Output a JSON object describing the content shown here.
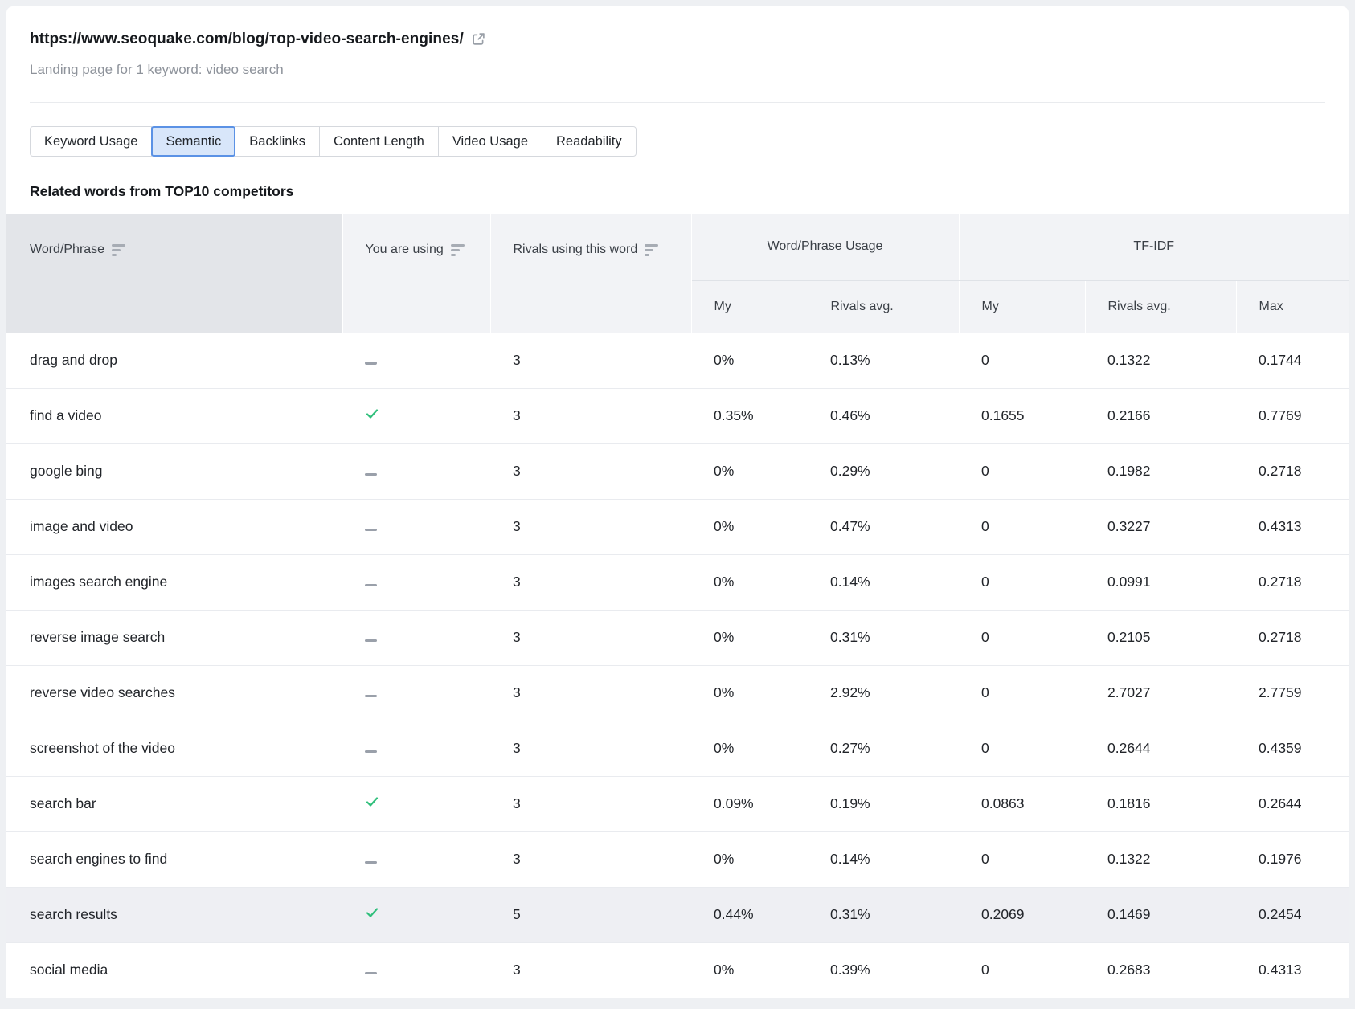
{
  "page": {
    "url": "https://www.seoquake.com/blog/тop-video-search-engines/",
    "subtitle": "Landing page for 1 keyword: video search"
  },
  "tabs": [
    {
      "label": "Keyword Usage",
      "selected": false
    },
    {
      "label": "Semantic",
      "selected": true
    },
    {
      "label": "Backlinks",
      "selected": false
    },
    {
      "label": "Content Length",
      "selected": false
    },
    {
      "label": "Video Usage",
      "selected": false
    },
    {
      "label": "Readability",
      "selected": false
    }
  ],
  "section_title": "Related words from TOP10 competitors",
  "table": {
    "headers": {
      "word_phrase": "Word/Phrase",
      "you_are_using": "You are using",
      "rivals_using": "Rivals using this word",
      "usage_group": "Word/Phrase Usage",
      "tfidf_group": "TF-IDF",
      "usage_my": "My",
      "usage_rivals_avg": "Rivals avg.",
      "tfidf_my": "My",
      "tfidf_rivals_avg": "Rivals avg.",
      "tfidf_max": "Max"
    },
    "rows": [
      {
        "word": "drag and drop",
        "using": false,
        "rivals": "3",
        "usage_my": "0%",
        "usage_rivals": "0.13%",
        "tfidf_my": "0",
        "tfidf_rivals": "0.1322",
        "tfidf_max": "0.1744",
        "highlight": false
      },
      {
        "word": "find a video",
        "using": true,
        "rivals": "3",
        "usage_my": "0.35%",
        "usage_rivals": "0.46%",
        "tfidf_my": "0.1655",
        "tfidf_rivals": "0.2166",
        "tfidf_max": "0.7769",
        "highlight": false
      },
      {
        "word": "google bing",
        "using": false,
        "rivals": "3",
        "usage_my": "0%",
        "usage_rivals": "0.29%",
        "tfidf_my": "0",
        "tfidf_rivals": "0.1982",
        "tfidf_max": "0.2718",
        "highlight": false
      },
      {
        "word": "image and video",
        "using": false,
        "rivals": "3",
        "usage_my": "0%",
        "usage_rivals": "0.47%",
        "tfidf_my": "0",
        "tfidf_rivals": "0.3227",
        "tfidf_max": "0.4313",
        "highlight": false
      },
      {
        "word": "images search engine",
        "using": false,
        "rivals": "3",
        "usage_my": "0%",
        "usage_rivals": "0.14%",
        "tfidf_my": "0",
        "tfidf_rivals": "0.0991",
        "tfidf_max": "0.2718",
        "highlight": false
      },
      {
        "word": "reverse image search",
        "using": false,
        "rivals": "3",
        "usage_my": "0%",
        "usage_rivals": "0.31%",
        "tfidf_my": "0",
        "tfidf_rivals": "0.2105",
        "tfidf_max": "0.2718",
        "highlight": false
      },
      {
        "word": "reverse video searches",
        "using": false,
        "rivals": "3",
        "usage_my": "0%",
        "usage_rivals": "2.92%",
        "tfidf_my": "0",
        "tfidf_rivals": "2.7027",
        "tfidf_max": "2.7759",
        "highlight": false
      },
      {
        "word": "screenshot of the video",
        "using": false,
        "rivals": "3",
        "usage_my": "0%",
        "usage_rivals": "0.27%",
        "tfidf_my": "0",
        "tfidf_rivals": "0.2644",
        "tfidf_max": "0.4359",
        "highlight": false
      },
      {
        "word": "search bar",
        "using": true,
        "rivals": "3",
        "usage_my": "0.09%",
        "usage_rivals": "0.19%",
        "tfidf_my": "0.0863",
        "tfidf_rivals": "0.1816",
        "tfidf_max": "0.2644",
        "highlight": false
      },
      {
        "word": "search engines to find",
        "using": false,
        "rivals": "3",
        "usage_my": "0%",
        "usage_rivals": "0.14%",
        "tfidf_my": "0",
        "tfidf_rivals": "0.1322",
        "tfidf_max": "0.1976",
        "highlight": false
      },
      {
        "word": "search results",
        "using": true,
        "rivals": "5",
        "usage_my": "0.44%",
        "usage_rivals": "0.31%",
        "tfidf_my": "0.2069",
        "tfidf_rivals": "0.1469",
        "tfidf_max": "0.2454",
        "highlight": true
      },
      {
        "word": "social media",
        "using": false,
        "rivals": "3",
        "usage_my": "0%",
        "usage_rivals": "0.39%",
        "tfidf_my": "0",
        "tfidf_rivals": "0.2683",
        "tfidf_max": "0.4313",
        "highlight": false
      }
    ]
  },
  "icons": {
    "external_link": "external-link-icon",
    "sort": "sort-icon",
    "check": "check-icon",
    "dash": "dash-icon"
  },
  "colors": {
    "check_green": "#2fbf7b",
    "tab_selected_bg": "#d8e6fa",
    "tab_selected_border": "#5b92e5",
    "row_highlight": "#eeeff3",
    "page_bg": "#eef0f3"
  }
}
